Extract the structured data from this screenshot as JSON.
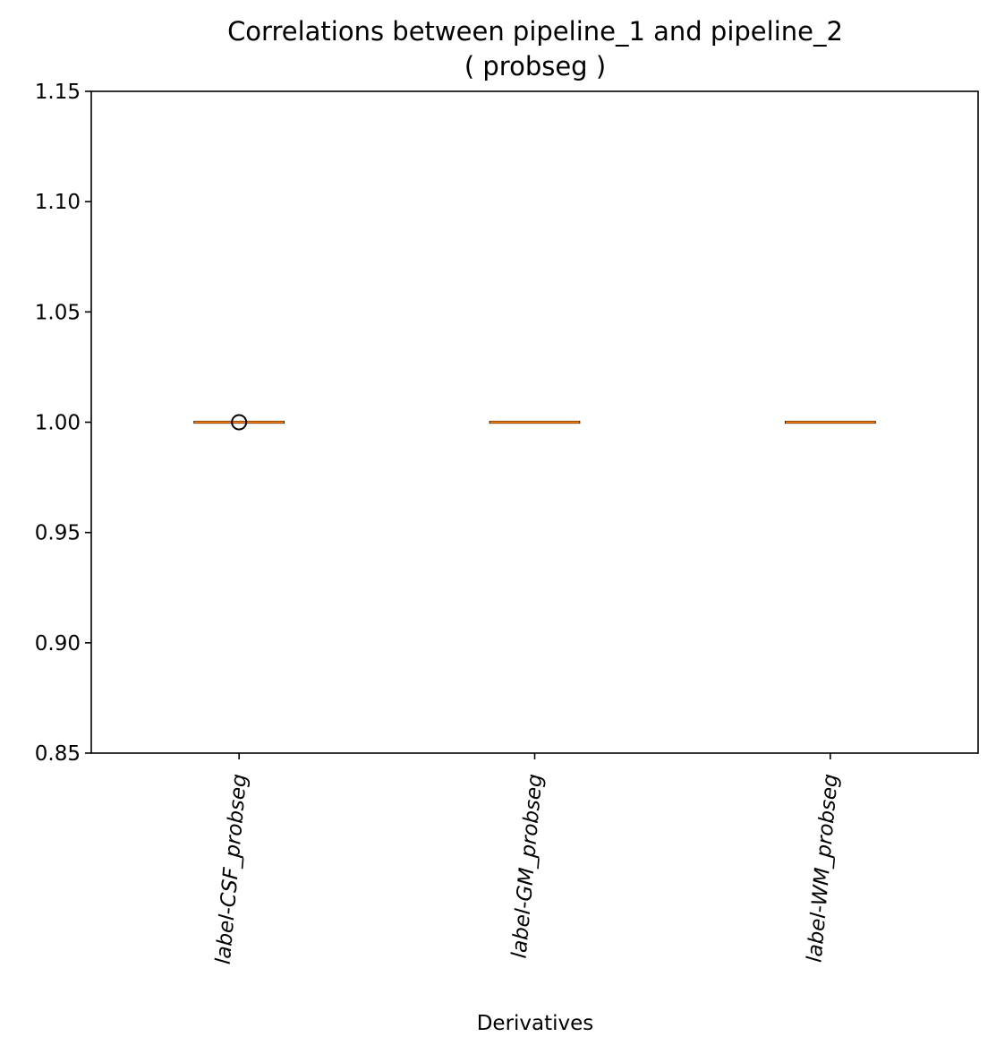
{
  "chart_data": {
    "type": "box",
    "title": "Correlations between pipeline_1 and pipeline_2",
    "subtitle": "( probseg )",
    "xlabel": "Derivatives",
    "ylabel": "",
    "ylim": [
      0.85,
      1.15
    ],
    "yticks": [
      0.85,
      0.9,
      0.95,
      1.0,
      1.05,
      1.1,
      1.15
    ],
    "ytick_labels": [
      "0.85",
      "0.90",
      "0.95",
      "1.00",
      "1.05",
      "1.10",
      "1.15"
    ],
    "categories": [
      "label-CSF_probseg",
      "label-GM_probseg",
      "label-WM_probseg"
    ],
    "boxes": [
      {
        "category": "label-CSF_probseg",
        "q1": 1.0,
        "median": 1.0,
        "q3": 1.0,
        "whisker_low": 1.0,
        "whisker_high": 1.0,
        "outliers": [
          1.0
        ]
      },
      {
        "category": "label-GM_probseg",
        "q1": 1.0,
        "median": 1.0,
        "q3": 1.0,
        "whisker_low": 1.0,
        "whisker_high": 1.0,
        "outliers": []
      },
      {
        "category": "label-WM_probseg",
        "q1": 1.0,
        "median": 1.0,
        "q3": 1.0,
        "whisker_low": 1.0,
        "whisker_high": 1.0,
        "outliers": []
      }
    ],
    "grid": false,
    "colors": {
      "median": "#ff7f0e",
      "box": "#000000",
      "outlier": "#000000"
    }
  }
}
